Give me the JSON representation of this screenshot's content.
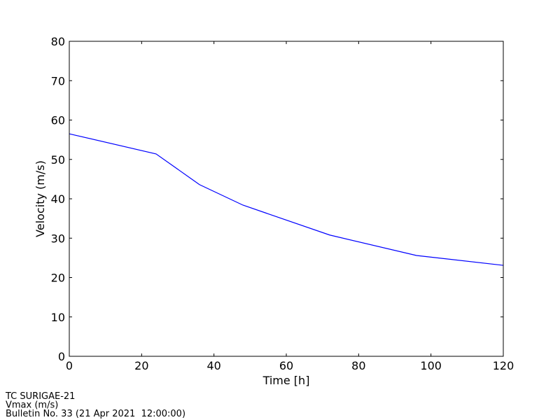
{
  "chart_data": {
    "type": "line",
    "xlabel": "Time [h]",
    "ylabel": "Velocity (m/s)",
    "x": [
      0,
      24,
      36,
      48,
      72,
      96,
      120
    ],
    "values": [
      56.5,
      51.4,
      43.6,
      38.4,
      30.8,
      25.6,
      23.1
    ],
    "color": "#0000ff",
    "xlim": [
      0,
      120
    ],
    "xticks": [
      0,
      20,
      40,
      60,
      80,
      100,
      120
    ],
    "ylim": [
      0,
      80
    ],
    "yticks": [
      0,
      10,
      20,
      30,
      40,
      50,
      60,
      70,
      80
    ],
    "grid": false,
    "annotations": [
      "TC SURIGAE-21",
      "Vmax (m/s)",
      "Bulletin No. 33 (21 Apr 2021  12:00:00)"
    ]
  }
}
